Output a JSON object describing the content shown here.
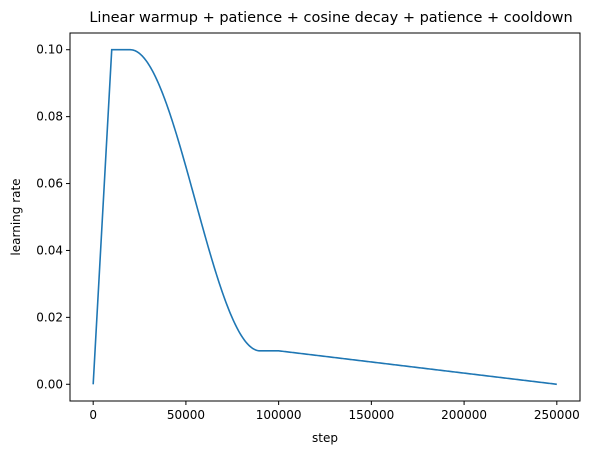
{
  "chart_data": {
    "type": "line",
    "title": "Linear warmup + patience + cosine decay + patience + cooldown",
    "xlabel": "step",
    "ylabel": "learning rate",
    "xlim": [
      -12500,
      262500
    ],
    "ylim": [
      -0.005,
      0.105
    ],
    "xticks": [
      0,
      50000,
      100000,
      150000,
      200000,
      250000
    ],
    "yticks": [
      0.0,
      0.02,
      0.04,
      0.06,
      0.08,
      0.1
    ],
    "xtick_labels": [
      "0",
      "50000",
      "100000",
      "150000",
      "200000",
      "250000"
    ],
    "ytick_labels": [
      "0.00",
      "0.02",
      "0.04",
      "0.06",
      "0.08",
      "0.10"
    ],
    "grid": false,
    "series": [
      {
        "color": "#1f77b4",
        "schedule": {
          "warmup_end": 10000,
          "peak_lr": 0.1,
          "patience1_end": 20000,
          "decay_end": 90000,
          "decayed_lr": 0.01,
          "patience2_end": 100000,
          "cooldown_end": 250000,
          "final_lr": 0.0
        }
      }
    ]
  }
}
